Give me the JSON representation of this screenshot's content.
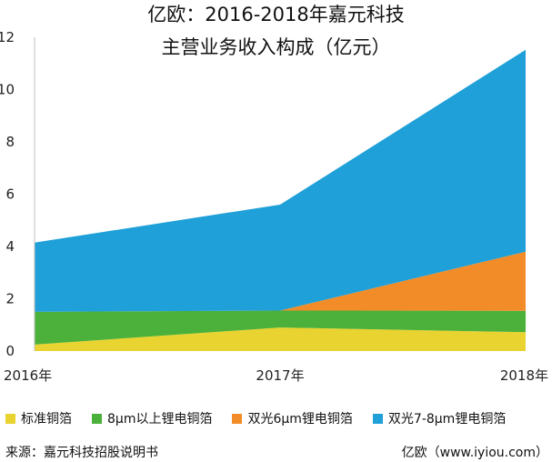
{
  "title_line1": "亿欧：2016-2018年嘉元科技",
  "title_line2": "主营业务收入构成（亿元）",
  "source": "来源：嘉元科技招股说明书",
  "credit": "亿欧（www.iyiou.com）",
  "chart_data": {
    "type": "area",
    "stacked": true,
    "x": [
      "2016年",
      "2017年",
      "2018年"
    ],
    "ylim": [
      0,
      12
    ],
    "yticks": [
      "0",
      "2",
      "4",
      "6",
      "8",
      "10",
      "12"
    ],
    "grid": false,
    "legend_position": "bottom",
    "series": [
      {
        "name": "标准铜箔",
        "values": [
          0.25,
          0.9,
          0.72
        ],
        "color": "#e8d331"
      },
      {
        "name": "8μm以上锂电铜箔",
        "values": [
          1.25,
          0.65,
          0.82
        ],
        "color": "#4cb13a"
      },
      {
        "name": "双光6μm锂电铜箔",
        "values": [
          0.0,
          0.0,
          2.26
        ],
        "color": "#f28c28"
      },
      {
        "name": "双光7-8μm锂电铜箔",
        "values": [
          2.65,
          4.05,
          7.72
        ],
        "color": "#1fa0d8"
      }
    ]
  }
}
